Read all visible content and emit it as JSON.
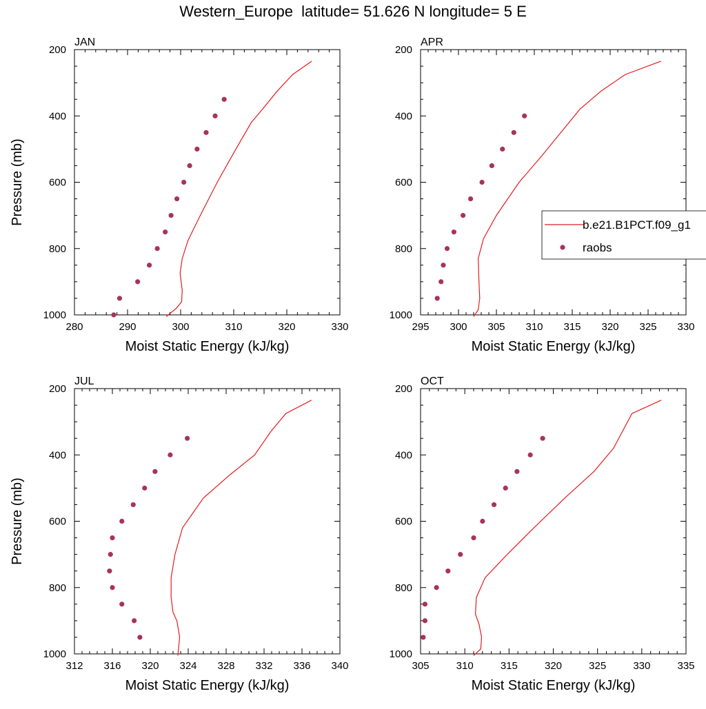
{
  "figure_title": "Western_Europe  latitude= 51.626 N longitude= 5 E",
  "legend": {
    "model_label": "b.e21.B1PCT.f09_g1",
    "obs_label": "raobs",
    "model_color": "#e41a1c",
    "obs_color": "#a8325e"
  },
  "chart_data": [
    {
      "type": "line",
      "panel_label": "JAN",
      "xlabel": "Moist Static Energy (kJ/kg)",
      "ylabel": "Pressure (mb)",
      "xlim": [
        280,
        330
      ],
      "xticks": [
        280,
        290,
        300,
        310,
        320,
        330
      ],
      "ylim": [
        1000,
        200
      ],
      "yticks": [
        200,
        400,
        600,
        800,
        1000
      ],
      "series": [
        {
          "name": "b.e21.B1PCT.f09_g1",
          "kind": "line",
          "color": "#e41a1c",
          "points": [
            [
              297.3,
              1005
            ],
            [
              299.2,
              980
            ],
            [
              300.2,
              960
            ],
            [
              300.3,
              925
            ],
            [
              299.9,
              875
            ],
            [
              300.3,
              830
            ],
            [
              301.4,
              775
            ],
            [
              303.7,
              700
            ],
            [
              306.9,
              600
            ],
            [
              310.4,
              500
            ],
            [
              313.3,
              420
            ],
            [
              315.4,
              380
            ],
            [
              318.2,
              325
            ],
            [
              321.1,
              275
            ],
            [
              324.7,
              235
            ]
          ]
        },
        {
          "name": "raobs",
          "kind": "scatter",
          "color": "#a8325e",
          "points": [
            [
              287.4,
              1000
            ],
            [
              288.5,
              950
            ],
            [
              291.9,
              900
            ],
            [
              294.1,
              850
            ],
            [
              295.6,
              800
            ],
            [
              297.1,
              750
            ],
            [
              298.2,
              700
            ],
            [
              299.3,
              650
            ],
            [
              300.6,
              600
            ],
            [
              301.7,
              550
            ],
            [
              303.1,
              500
            ],
            [
              304.8,
              450
            ],
            [
              306.5,
              400
            ],
            [
              308.2,
              350
            ]
          ]
        }
      ]
    },
    {
      "type": "line",
      "panel_label": "APR",
      "xlabel": "Moist Static Energy (kJ/kg)",
      "ylabel": "",
      "xlim": [
        295,
        330
      ],
      "xticks": [
        295,
        300,
        305,
        310,
        315,
        320,
        325,
        330
      ],
      "ylim": [
        1000,
        200
      ],
      "yticks": [
        200,
        400,
        600,
        800,
        1000
      ],
      "series": [
        {
          "name": "b.e21.B1PCT.f09_g1",
          "kind": "line",
          "color": "#e41a1c",
          "points": [
            [
              302.0,
              1005
            ],
            [
              302.6,
              985
            ],
            [
              302.8,
              950
            ],
            [
              302.7,
              900
            ],
            [
              302.6,
              830
            ],
            [
              303.3,
              770
            ],
            [
              305.0,
              700
            ],
            [
              308.0,
              600
            ],
            [
              311.0,
              520
            ],
            [
              313.5,
              450
            ],
            [
              316.0,
              380
            ],
            [
              318.8,
              325
            ],
            [
              322.0,
              275
            ],
            [
              326.7,
              235
            ]
          ]
        },
        {
          "name": "raobs",
          "kind": "scatter",
          "color": "#a8325e",
          "points": [
            [
              297.2,
              950
            ],
            [
              297.7,
              900
            ],
            [
              298.0,
              850
            ],
            [
              298.5,
              800
            ],
            [
              299.4,
              750
            ],
            [
              300.6,
              700
            ],
            [
              301.6,
              650
            ],
            [
              303.1,
              600
            ],
            [
              304.4,
              550
            ],
            [
              305.8,
              500
            ],
            [
              307.3,
              450
            ],
            [
              308.7,
              400
            ]
          ]
        }
      ]
    },
    {
      "type": "line",
      "panel_label": "JUL",
      "xlabel": "Moist Static Energy (kJ/kg)",
      "ylabel": "Pressure (mb)",
      "xlim": [
        312,
        340
      ],
      "xticks": [
        312,
        316,
        320,
        324,
        328,
        332,
        336,
        340
      ],
      "ylim": [
        1000,
        200
      ],
      "yticks": [
        200,
        400,
        600,
        800,
        1000
      ],
      "series": [
        {
          "name": "b.e21.B1PCT.f09_g1",
          "kind": "line",
          "color": "#e41a1c",
          "points": [
            [
              322.9,
              1005
            ],
            [
              323.1,
              950
            ],
            [
              322.8,
              900
            ],
            [
              322.4,
              875
            ],
            [
              322.2,
              830
            ],
            [
              322.2,
              770
            ],
            [
              322.6,
              700
            ],
            [
              323.4,
              620
            ],
            [
              325.6,
              530
            ],
            [
              328.4,
              460
            ],
            [
              331.0,
              400
            ],
            [
              332.7,
              330
            ],
            [
              334.3,
              275
            ],
            [
              337.0,
              235
            ]
          ]
        },
        {
          "name": "raobs",
          "kind": "scatter",
          "color": "#a8325e",
          "points": [
            [
              318.9,
              950
            ],
            [
              318.3,
              900
            ],
            [
              317.0,
              850
            ],
            [
              316.0,
              800
            ],
            [
              315.7,
              750
            ],
            [
              315.8,
              700
            ],
            [
              316.0,
              650
            ],
            [
              317.0,
              600
            ],
            [
              318.2,
              550
            ],
            [
              319.4,
              500
            ],
            [
              320.5,
              450
            ],
            [
              322.1,
              400
            ],
            [
              323.9,
              350
            ]
          ]
        }
      ]
    },
    {
      "type": "line",
      "panel_label": "OCT",
      "xlabel": "Moist Static Energy (kJ/kg)",
      "ylabel": "",
      "xlim": [
        305,
        335
      ],
      "xticks": [
        305,
        310,
        315,
        320,
        325,
        330,
        335
      ],
      "ylim": [
        1000,
        200
      ],
      "yticks": [
        200,
        400,
        600,
        800,
        1000
      ],
      "series": [
        {
          "name": "b.e21.B1PCT.f09_g1",
          "kind": "line",
          "color": "#e41a1c",
          "points": [
            [
              311.0,
              1005
            ],
            [
              311.8,
              985
            ],
            [
              311.9,
              950
            ],
            [
              311.6,
              910
            ],
            [
              311.2,
              880
            ],
            [
              311.3,
              830
            ],
            [
              312.3,
              770
            ],
            [
              314.8,
              700
            ],
            [
              317.8,
              620
            ],
            [
              321.3,
              530
            ],
            [
              324.6,
              450
            ],
            [
              326.8,
              380
            ],
            [
              328.9,
              275
            ],
            [
              332.2,
              235
            ]
          ]
        },
        {
          "name": "raobs",
          "kind": "scatter",
          "color": "#a8325e",
          "points": [
            [
              305.3,
              950
            ],
            [
              305.5,
              900
            ],
            [
              305.5,
              850
            ],
            [
              306.8,
              800
            ],
            [
              308.1,
              750
            ],
            [
              309.5,
              700
            ],
            [
              311.0,
              650
            ],
            [
              312.0,
              600
            ],
            [
              313.3,
              550
            ],
            [
              314.6,
              500
            ],
            [
              315.9,
              450
            ],
            [
              317.4,
              400
            ],
            [
              318.8,
              350
            ]
          ]
        }
      ]
    }
  ]
}
